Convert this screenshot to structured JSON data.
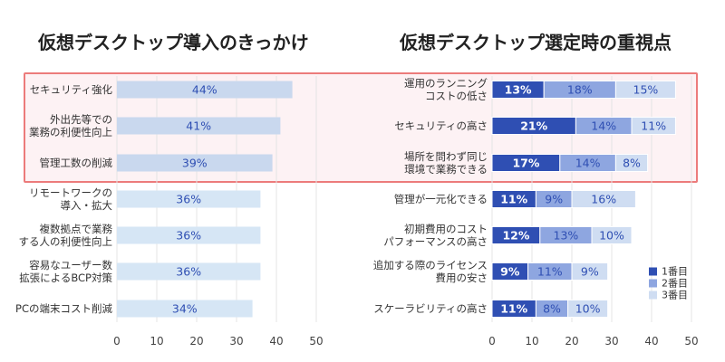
{
  "chart_data": [
    {
      "type": "bar",
      "title": "仮想デスクトップ導入のきっかけ",
      "xlabel": "",
      "ylabel": "",
      "xlim": [
        0,
        50
      ],
      "xticks": [
        "0",
        "10",
        "20",
        "30",
        "40",
        "50"
      ],
      "categories": [
        [
          "セキュリティ強化"
        ],
        [
          "外出先等での",
          "業務の利便性向上"
        ],
        [
          "管理工数の削減"
        ],
        [
          "リモートワークの",
          "導入・拡大"
        ],
        [
          "複数拠点で業務",
          "する人の利便性向上"
        ],
        [
          "容易なユーザー数",
          "拡張によるBCP対策"
        ],
        [
          "PCの端末コスト削減"
        ]
      ],
      "values": [
        44,
        41,
        39,
        36,
        36,
        36,
        34
      ],
      "labels": [
        "44%",
        "41%",
        "39%",
        "36%",
        "36%",
        "36%",
        "34%"
      ],
      "highlighted_count": 3
    },
    {
      "type": "bar",
      "stacked": true,
      "title": "仮想デスクトップ選定時の重視点",
      "xlabel": "",
      "ylabel": "",
      "xlim": [
        0,
        50
      ],
      "xticks": [
        "0",
        "10",
        "20",
        "30",
        "40",
        "50"
      ],
      "categories": [
        [
          "運用のランニング",
          "コストの低さ"
        ],
        [
          "セキュリティの高さ"
        ],
        [
          "場所を問わず同じ",
          "環境で業務できる"
        ],
        [
          "管理が一元化できる"
        ],
        [
          "初期費用のコスト",
          "パフォーマンスの高さ"
        ],
        [
          "追加する際のライセンス",
          "費用の安さ"
        ],
        [
          "スケーラビリティの高さ"
        ]
      ],
      "series": [
        {
          "name": "1番目",
          "color": "#2f4fb3",
          "values": [
            13,
            21,
            17,
            11,
            12,
            9,
            11
          ],
          "labels": [
            "13%",
            "21%",
            "17%",
            "11%",
            "12%",
            "9%",
            "11%"
          ]
        },
        {
          "name": "2番目",
          "color": "#8ea6e0",
          "values": [
            18,
            14,
            14,
            9,
            13,
            11,
            8
          ],
          "labels": [
            "18%",
            "14%",
            "14%",
            "9%",
            "13%",
            "11%",
            "8%"
          ]
        },
        {
          "name": "3番目",
          "color": "#cfddf2",
          "values": [
            15,
            11,
            8,
            16,
            10,
            9,
            10
          ],
          "labels": [
            "15%",
            "11%",
            "8%",
            "16%",
            "10%",
            "9%",
            "10%"
          ]
        }
      ],
      "legend": "bottom-right",
      "highlighted_count": 3
    }
  ],
  "colors": {
    "highlight_border": "#ec7b7b",
    "highlight_fill": "#fdf2f4",
    "bar_highlighted": "#c9d8ee",
    "bar_plain": "#d6e6f5",
    "bar_label": "#2f4fb3"
  }
}
